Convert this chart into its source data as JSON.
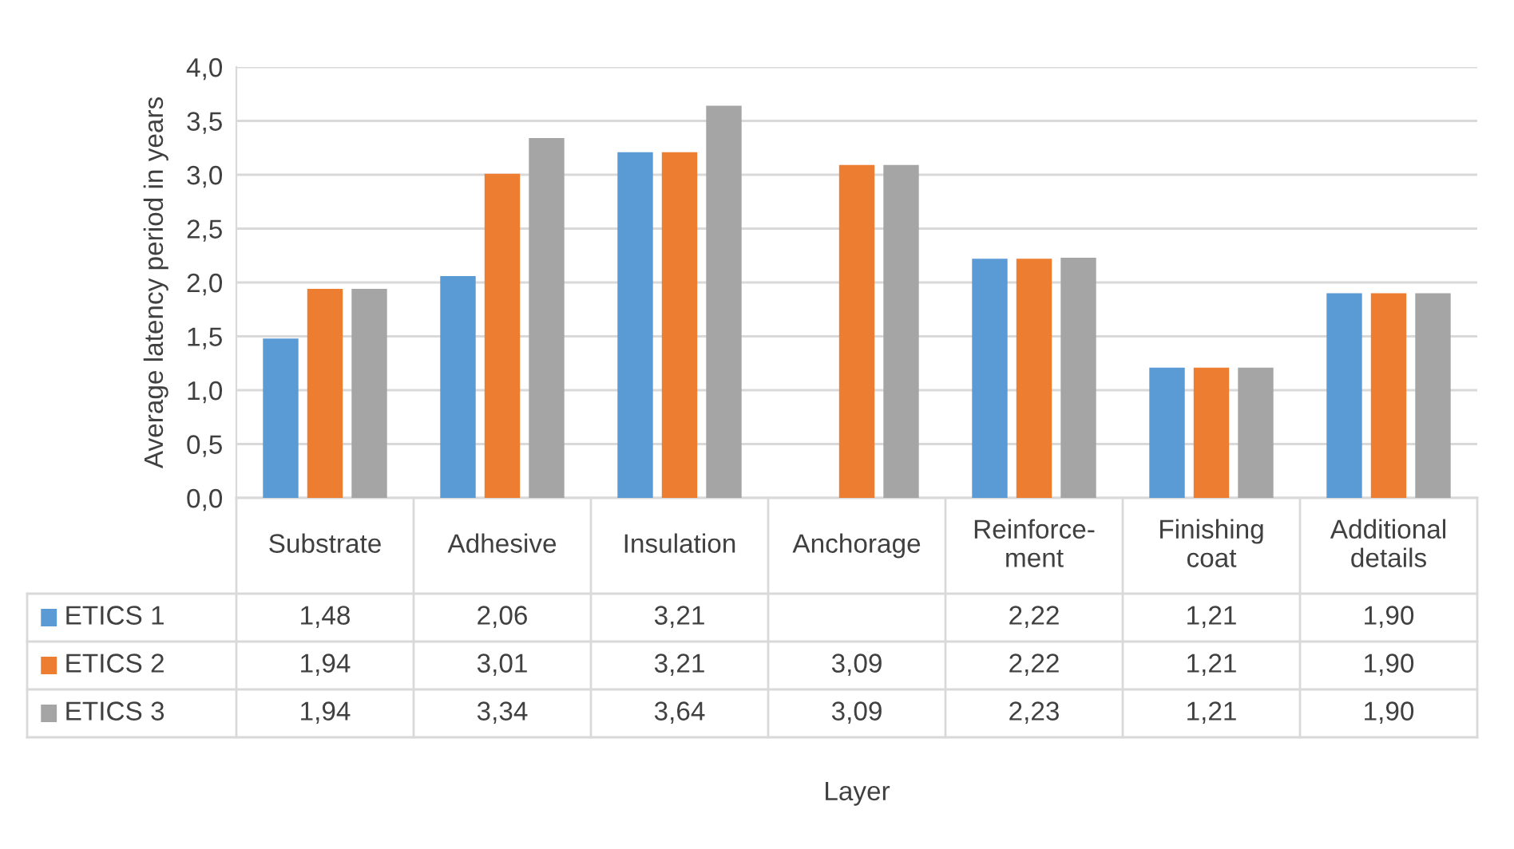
{
  "chart_data": {
    "type": "bar",
    "annotations": [
      "Layer"
    ],
    "ylabel": "Average latency period in years",
    "categories": [
      "Substrate",
      "Adhesive",
      "Insulation",
      "Anchorage",
      "Reinforce-\nment",
      "Finishing\ncoat",
      "Additional\ndetails"
    ],
    "series": [
      {
        "name": "ETICS 1",
        "color": "#5b9bd5",
        "values": [
          1.48,
          2.06,
          3.21,
          null,
          2.22,
          1.21,
          1.9
        ],
        "value_labels": [
          "1,48",
          "2,06",
          "3,21",
          null,
          "2,22",
          "1,21",
          "1,90"
        ]
      },
      {
        "name": "ETICS 2",
        "color": "#ed7d31",
        "values": [
          1.94,
          3.01,
          3.21,
          3.09,
          2.22,
          1.21,
          1.9
        ],
        "value_labels": [
          "1,94",
          "3,01",
          "3,21",
          "3,09",
          "2,22",
          "1,21",
          "1,90"
        ]
      },
      {
        "name": "ETICS 3",
        "color": "#a5a5a5",
        "values": [
          1.94,
          3.34,
          3.64,
          3.09,
          2.23,
          1.21,
          1.9
        ],
        "value_labels": [
          "1,94",
          "3,34",
          "3,64",
          "3,09",
          "2,23",
          "1,21",
          "1,90"
        ]
      }
    ],
    "ylim": [
      0,
      4
    ],
    "yticks": [
      {
        "value": 0,
        "label": "0,0"
      },
      {
        "value": 0.5,
        "label": "0,5"
      },
      {
        "value": 1,
        "label": "1,0"
      },
      {
        "value": 1.5,
        "label": "1,5"
      },
      {
        "value": 2,
        "label": "2,0"
      },
      {
        "value": 2.5,
        "label": "2,5"
      },
      {
        "value": 3,
        "label": "3,0"
      },
      {
        "value": 3.5,
        "label": "3,5"
      },
      {
        "value": 4,
        "label": "4,0"
      }
    ],
    "grid": "y",
    "legend": "bottom"
  }
}
